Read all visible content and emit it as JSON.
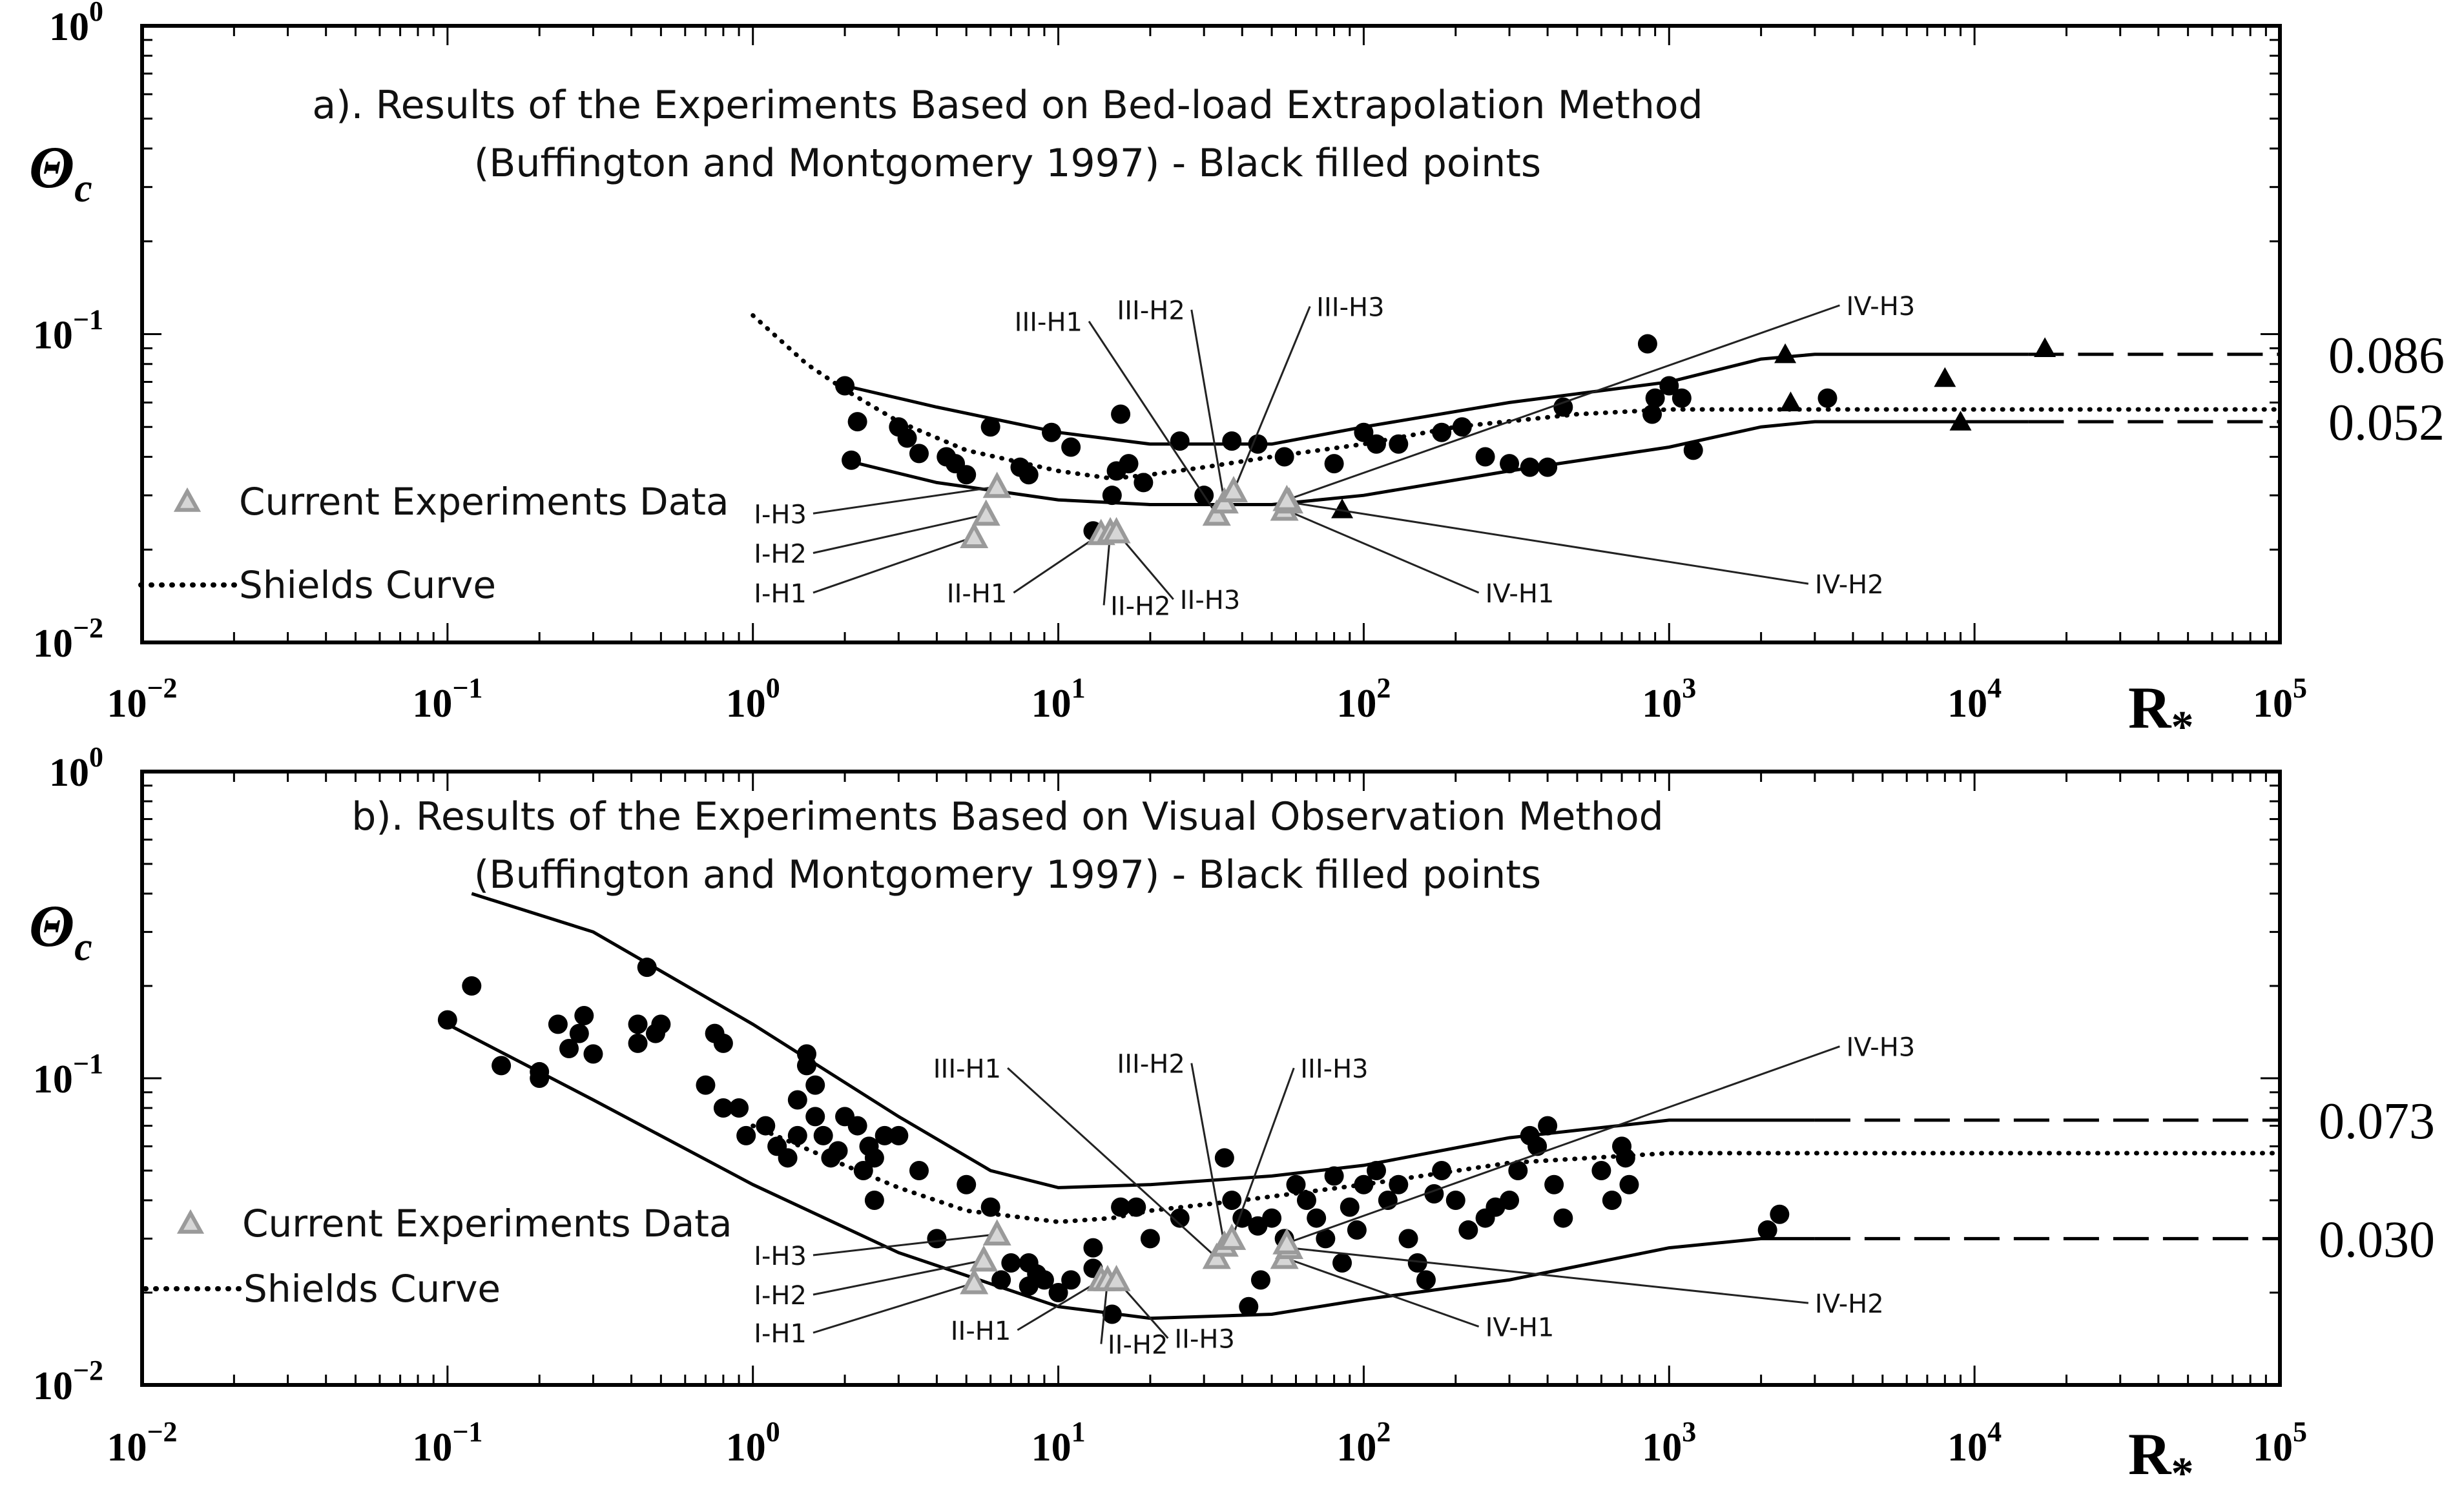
{
  "colors": {
    "ink": "#000000",
    "current_marker": "#9a9a9a",
    "current_fill": "#d6d6d6",
    "label_line": "#222222"
  },
  "chart_data": [
    {
      "type": "scatter",
      "panel": "a",
      "title_line1": "a). Results of the Experiments Based on Bed-load Extrapolation Method",
      "title_line2": "(Buffington and Montgomery 1997) - Black filled points",
      "ylabel": "Θ",
      "ylabel_sub": "c",
      "xlabel": "R",
      "xlabel_sub": "*",
      "xlim": [
        0.01,
        100000
      ],
      "ylim": [
        0.01,
        1
      ],
      "x_ticks": [
        {
          "v": 0.01,
          "b": "10",
          "e": "−2"
        },
        {
          "v": 0.1,
          "b": "10",
          "e": "−1"
        },
        {
          "v": 1,
          "b": "10",
          "e": "0"
        },
        {
          "v": 10,
          "b": "10",
          "e": "1"
        },
        {
          "v": 100,
          "b": "10",
          "e": "2"
        },
        {
          "v": 1000,
          "b": "10",
          "e": "3"
        },
        {
          "v": 10000,
          "b": "10",
          "e": "4"
        },
        {
          "v": 100000,
          "b": "10",
          "e": "5"
        }
      ],
      "y_ticks": [
        {
          "v": 1,
          "b": "10",
          "e": "0"
        },
        {
          "v": 0.1,
          "b": "10",
          "e": "−1"
        },
        {
          "v": 0.01,
          "b": "10",
          "e": "−2"
        }
      ],
      "right_labels": [
        {
          "v": 0.086,
          "t": "0.086"
        },
        {
          "v": 0.052,
          "t": "0.052"
        }
      ],
      "legend": {
        "current_label": "Current Experiments Data",
        "shields_label": "Shields Curve"
      },
      "envelope_upper": [
        [
          2,
          0.068
        ],
        [
          4,
          0.058
        ],
        [
          10,
          0.048
        ],
        [
          20,
          0.044
        ],
        [
          50,
          0.044
        ],
        [
          100,
          0.05
        ],
        [
          300,
          0.06
        ],
        [
          1000,
          0.07
        ],
        [
          2000,
          0.083
        ],
        [
          3000,
          0.086
        ],
        [
          15000,
          0.086
        ]
      ],
      "envelope_upper_dashed": [
        [
          15000,
          0.086
        ],
        [
          100000,
          0.086
        ]
      ],
      "envelope_lower": [
        [
          2,
          0.039
        ],
        [
          4,
          0.033
        ],
        [
          10,
          0.029
        ],
        [
          20,
          0.028
        ],
        [
          50,
          0.028
        ],
        [
          100,
          0.03
        ],
        [
          300,
          0.036
        ],
        [
          1000,
          0.043
        ],
        [
          2000,
          0.05
        ],
        [
          3000,
          0.052
        ],
        [
          15000,
          0.052
        ]
      ],
      "envelope_lower_dashed": [
        [
          15000,
          0.052
        ],
        [
          100000,
          0.052
        ]
      ],
      "shields_curve": [
        [
          1,
          0.115
        ],
        [
          1.5,
          0.08
        ],
        [
          2,
          0.066
        ],
        [
          3,
          0.052
        ],
        [
          5,
          0.042
        ],
        [
          10,
          0.036
        ],
        [
          15,
          0.034
        ],
        [
          20,
          0.035
        ],
        [
          30,
          0.037
        ],
        [
          50,
          0.04
        ],
        [
          100,
          0.044
        ],
        [
          200,
          0.05
        ],
        [
          500,
          0.055
        ],
        [
          1000,
          0.057
        ],
        [
          100000,
          0.057
        ]
      ],
      "series_black_circles": [
        [
          2,
          0.068
        ],
        [
          2.2,
          0.052
        ],
        [
          2.1,
          0.039
        ],
        [
          3,
          0.05
        ],
        [
          3.2,
          0.046
        ],
        [
          3.5,
          0.041
        ],
        [
          4.3,
          0.04
        ],
        [
          4.6,
          0.038
        ],
        [
          5,
          0.035
        ],
        [
          6,
          0.05
        ],
        [
          7.5,
          0.037
        ],
        [
          8,
          0.035
        ],
        [
          9.5,
          0.048
        ],
        [
          11,
          0.043
        ],
        [
          13,
          0.023
        ],
        [
          15,
          0.03
        ],
        [
          16,
          0.055
        ],
        [
          15.5,
          0.036
        ],
        [
          17,
          0.038
        ],
        [
          19,
          0.033
        ],
        [
          25,
          0.045
        ],
        [
          30,
          0.03
        ],
        [
          37,
          0.045
        ],
        [
          45,
          0.044
        ],
        [
          55,
          0.04
        ],
        [
          80,
          0.038
        ],
        [
          100,
          0.048
        ],
        [
          110,
          0.044
        ],
        [
          130,
          0.044
        ],
        [
          180,
          0.048
        ],
        [
          210,
          0.05
        ],
        [
          250,
          0.04
        ],
        [
          300,
          0.038
        ],
        [
          350,
          0.037
        ],
        [
          400,
          0.037
        ],
        [
          450,
          0.058
        ],
        [
          850,
          0.093
        ],
        [
          880,
          0.055
        ],
        [
          900,
          0.062
        ],
        [
          1000,
          0.068
        ],
        [
          1100,
          0.062
        ],
        [
          1200,
          0.042
        ],
        [
          3300,
          0.062
        ]
      ],
      "series_black_triangles": [
        [
          85,
          0.027
        ],
        [
          2400,
          0.086
        ],
        [
          2500,
          0.06
        ],
        [
          8000,
          0.072
        ],
        [
          9000,
          0.052
        ],
        [
          17000,
          0.09
        ]
      ],
      "current_points": [
        {
          "label": "I-H1",
          "x": 5.3,
          "y": 0.022,
          "lx": 1.5,
          "ly": 0.0145
        },
        {
          "label": "I-H2",
          "x": 5.8,
          "y": 0.026,
          "lx": 1.5,
          "ly": 0.0195
        },
        {
          "label": "I-H3",
          "x": 6.3,
          "y": 0.032,
          "lx": 1.5,
          "ly": 0.0262
        },
        {
          "label": "II-H1",
          "x": 13.8,
          "y": 0.0225,
          "lx": 6.8,
          "ly": 0.0145
        },
        {
          "label": "II-H2",
          "x": 14.8,
          "y": 0.0228,
          "lx": 14.8,
          "ly": 0.0132
        },
        {
          "label": "II-H3",
          "x": 15.5,
          "y": 0.0228,
          "lx": 25,
          "ly": 0.0138
        },
        {
          "label": "III-H1",
          "x": 33,
          "y": 0.026,
          "lx": 12,
          "ly": 0.11
        },
        {
          "label": "III-H2",
          "x": 35,
          "y": 0.0285,
          "lx": 26,
          "ly": 0.12
        },
        {
          "label": "III-H3",
          "x": 37.5,
          "y": 0.031,
          "lx": 70,
          "ly": 0.123
        },
        {
          "label": "IV-H1",
          "x": 55,
          "y": 0.027,
          "lx": 250,
          "ly": 0.0145
        },
        {
          "label": "IV-H2",
          "x": 57,
          "y": 0.0285,
          "lx": 3000,
          "ly": 0.0155
        },
        {
          "label": "IV-H3",
          "x": 56,
          "y": 0.029,
          "lx": 3800,
          "ly": 0.124
        }
      ]
    },
    {
      "type": "scatter",
      "panel": "b",
      "title_line1": "b). Results of the Experiments Based on Visual Observation Method",
      "title_line2": "(Buffington and Montgomery 1997) - Black filled points",
      "ylabel": "Θ",
      "ylabel_sub": "c",
      "xlabel": "R",
      "xlabel_sub": "*",
      "xlim": [
        0.01,
        100000
      ],
      "ylim": [
        0.01,
        1
      ],
      "x_ticks": [
        {
          "v": 0.01,
          "b": "10",
          "e": "−2"
        },
        {
          "v": 0.1,
          "b": "10",
          "e": "−1"
        },
        {
          "v": 1,
          "b": "10",
          "e": "0"
        },
        {
          "v": 10,
          "b": "10",
          "e": "1"
        },
        {
          "v": 100,
          "b": "10",
          "e": "2"
        },
        {
          "v": 1000,
          "b": "10",
          "e": "3"
        },
        {
          "v": 10000,
          "b": "10",
          "e": "4"
        },
        {
          "v": 100000,
          "b": "10",
          "e": "5"
        }
      ],
      "y_ticks": [
        {
          "v": 1,
          "b": "10",
          "e": "0"
        },
        {
          "v": 0.1,
          "b": "10",
          "e": "−1"
        },
        {
          "v": 0.01,
          "b": "10",
          "e": "−2"
        }
      ],
      "right_labels": [
        {
          "v": 0.073,
          "t": "0.073"
        },
        {
          "v": 0.03,
          "t": "0.030"
        }
      ],
      "legend": {
        "current_label": "Current Experiments Data",
        "shields_label": "Shields Curve"
      },
      "envelope_upper": [
        [
          0.12,
          0.4
        ],
        [
          0.3,
          0.3
        ],
        [
          1,
          0.15
        ],
        [
          3,
          0.075
        ],
        [
          6,
          0.05
        ],
        [
          10,
          0.044
        ],
        [
          20,
          0.045
        ],
        [
          50,
          0.048
        ],
        [
          100,
          0.052
        ],
        [
          300,
          0.064
        ],
        [
          1000,
          0.073
        ],
        [
          2000,
          0.073
        ],
        [
          3000,
          0.073
        ]
      ],
      "envelope_upper_dashed": [
        [
          3000,
          0.073
        ],
        [
          100000,
          0.073
        ]
      ],
      "envelope_lower": [
        [
          0.1,
          0.15
        ],
        [
          0.3,
          0.085
        ],
        [
          1,
          0.045
        ],
        [
          3,
          0.027
        ],
        [
          10,
          0.018
        ],
        [
          20,
          0.0165
        ],
        [
          50,
          0.017
        ],
        [
          100,
          0.019
        ],
        [
          300,
          0.022
        ],
        [
          1000,
          0.028
        ],
        [
          2000,
          0.03
        ],
        [
          3000,
          0.03
        ]
      ],
      "envelope_lower_dashed": [
        [
          3000,
          0.03
        ],
        [
          100000,
          0.03
        ]
      ],
      "shields_curve": [
        [
          1,
          0.07
        ],
        [
          2,
          0.052
        ],
        [
          3,
          0.044
        ],
        [
          5,
          0.037
        ],
        [
          10,
          0.034
        ],
        [
          15,
          0.035
        ],
        [
          20,
          0.037
        ],
        [
          40,
          0.04
        ],
        [
          100,
          0.045
        ],
        [
          300,
          0.053
        ],
        [
          1000,
          0.057
        ],
        [
          100000,
          0.057
        ]
      ],
      "series_black_circles": [
        [
          0.1,
          0.155
        ],
        [
          0.12,
          0.2
        ],
        [
          0.15,
          0.11
        ],
        [
          0.2,
          0.105
        ],
        [
          0.2,
          0.1
        ],
        [
          0.23,
          0.15
        ],
        [
          0.25,
          0.125
        ],
        [
          0.27,
          0.14
        ],
        [
          0.28,
          0.16
        ],
        [
          0.3,
          0.12
        ],
        [
          0.45,
          0.23
        ],
        [
          0.42,
          0.15
        ],
        [
          0.42,
          0.13
        ],
        [
          0.5,
          0.15
        ],
        [
          0.48,
          0.14
        ],
        [
          0.75,
          0.14
        ],
        [
          0.8,
          0.13
        ],
        [
          0.7,
          0.095
        ],
        [
          0.8,
          0.08
        ],
        [
          0.9,
          0.08
        ],
        [
          0.95,
          0.065
        ],
        [
          1.1,
          0.07
        ],
        [
          1.2,
          0.06
        ],
        [
          1.3,
          0.055
        ],
        [
          1.4,
          0.065
        ],
        [
          1.4,
          0.085
        ],
        [
          1.5,
          0.12
        ],
        [
          1.5,
          0.11
        ],
        [
          1.6,
          0.095
        ],
        [
          1.6,
          0.075
        ],
        [
          1.7,
          0.065
        ],
        [
          1.8,
          0.055
        ],
        [
          1.9,
          0.058
        ],
        [
          2,
          0.075
        ],
        [
          2.2,
          0.07
        ],
        [
          2.3,
          0.05
        ],
        [
          2.4,
          0.06
        ],
        [
          2.5,
          0.055
        ],
        [
          2.7,
          0.065
        ],
        [
          3,
          0.065
        ],
        [
          2.5,
          0.04
        ],
        [
          3.5,
          0.05
        ],
        [
          5,
          0.045
        ],
        [
          6,
          0.038
        ],
        [
          4,
          0.03
        ],
        [
          8,
          0.025
        ],
        [
          8.5,
          0.023
        ],
        [
          9,
          0.022
        ],
        [
          11,
          0.022
        ],
        [
          6.5,
          0.022
        ],
        [
          7,
          0.025
        ],
        [
          8,
          0.021
        ],
        [
          10,
          0.02
        ],
        [
          13,
          0.028
        ],
        [
          13,
          0.024
        ],
        [
          15,
          0.017
        ],
        [
          16,
          0.038
        ],
        [
          18,
          0.038
        ],
        [
          20,
          0.03
        ],
        [
          25,
          0.035
        ],
        [
          35,
          0.055
        ],
        [
          37,
          0.04
        ],
        [
          40,
          0.035
        ],
        [
          45,
          0.033
        ],
        [
          50,
          0.035
        ],
        [
          55,
          0.03
        ],
        [
          60,
          0.045
        ],
        [
          65,
          0.04
        ],
        [
          70,
          0.035
        ],
        [
          75,
          0.03
        ],
        [
          80,
          0.048
        ],
        [
          85,
          0.025
        ],
        [
          90,
          0.038
        ],
        [
          95,
          0.032
        ],
        [
          100,
          0.045
        ],
        [
          110,
          0.05
        ],
        [
          120,
          0.04
        ],
        [
          130,
          0.045
        ],
        [
          140,
          0.03
        ],
        [
          150,
          0.025
        ],
        [
          160,
          0.022
        ],
        [
          170,
          0.042
        ],
        [
          180,
          0.05
        ],
        [
          200,
          0.04
        ],
        [
          220,
          0.032
        ],
        [
          250,
          0.035
        ],
        [
          270,
          0.038
        ],
        [
          300,
          0.04
        ],
        [
          320,
          0.05
        ],
        [
          350,
          0.065
        ],
        [
          370,
          0.06
        ],
        [
          400,
          0.07
        ],
        [
          420,
          0.045
        ],
        [
          450,
          0.035
        ],
        [
          600,
          0.05
        ],
        [
          650,
          0.04
        ],
        [
          700,
          0.06
        ],
        [
          720,
          0.055
        ],
        [
          740,
          0.045
        ],
        [
          2100,
          0.032
        ],
        [
          2300,
          0.036
        ],
        [
          42,
          0.018
        ],
        [
          46,
          0.022
        ]
      ],
      "series_black_triangles": [],
      "current_points": [
        {
          "label": "I-H1",
          "x": 5.3,
          "y": 0.0215,
          "lx": 1.5,
          "ly": 0.0148
        },
        {
          "label": "I-H2",
          "x": 5.7,
          "y": 0.0255,
          "lx": 1.5,
          "ly": 0.0197
        },
        {
          "label": "I-H3",
          "x": 6.3,
          "y": 0.031,
          "lx": 1.5,
          "ly": 0.0265
        },
        {
          "label": "II-H1",
          "x": 13.8,
          "y": 0.022,
          "lx": 7,
          "ly": 0.0151
        },
        {
          "label": "II-H2",
          "x": 14.5,
          "y": 0.022,
          "lx": 14.5,
          "ly": 0.0136
        },
        {
          "label": "II-H3",
          "x": 15.5,
          "y": 0.022,
          "lx": 24,
          "ly": 0.0142
        },
        {
          "label": "III-H1",
          "x": 33,
          "y": 0.026,
          "lx": 6.5,
          "ly": 0.108
        },
        {
          "label": "III-H2",
          "x": 35,
          "y": 0.0285,
          "lx": 26,
          "ly": 0.112
        },
        {
          "label": "III-H3",
          "x": 37,
          "y": 0.03,
          "lx": 62,
          "ly": 0.108
        },
        {
          "label": "IV-H1",
          "x": 55,
          "y": 0.026,
          "lx": 250,
          "ly": 0.0155
        },
        {
          "label": "IV-H2",
          "x": 57,
          "y": 0.028,
          "lx": 3000,
          "ly": 0.0185
        },
        {
          "label": "IV-H3",
          "x": 56,
          "y": 0.029,
          "lx": 3800,
          "ly": 0.127
        }
      ]
    }
  ]
}
